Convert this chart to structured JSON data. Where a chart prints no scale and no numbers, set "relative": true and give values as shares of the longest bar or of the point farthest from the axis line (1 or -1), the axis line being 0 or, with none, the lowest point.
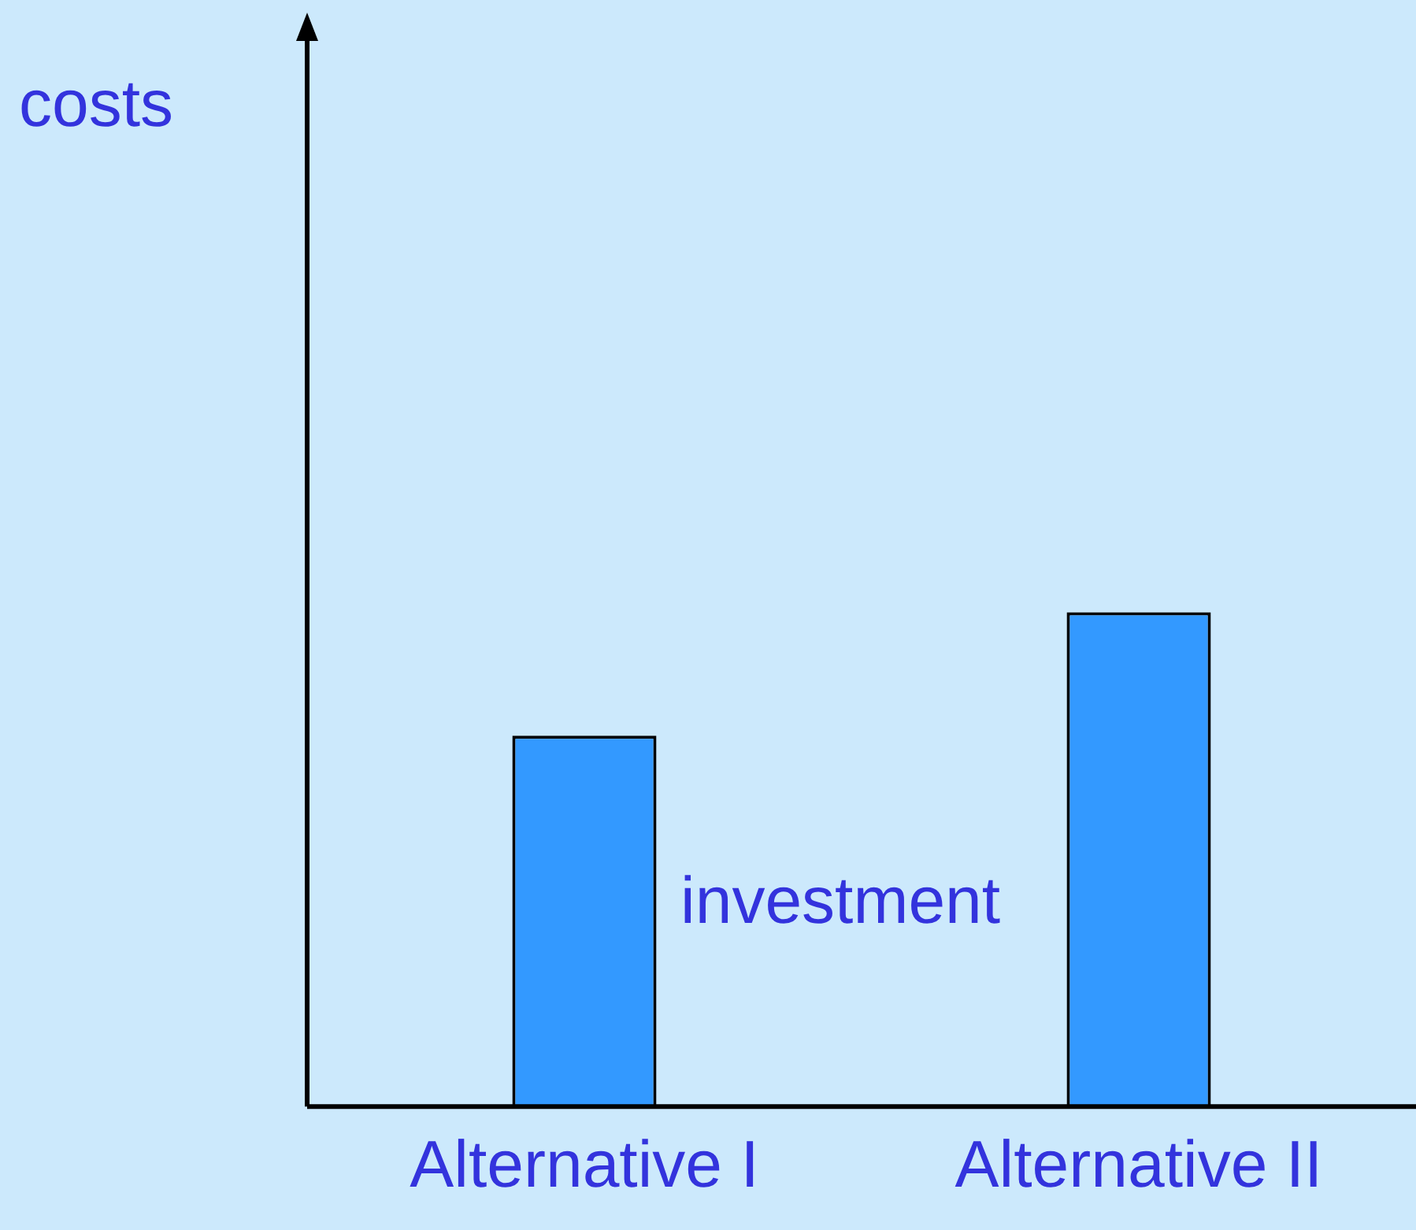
{
  "chart_data": {
    "type": "bar",
    "relative": true,
    "categories": [
      "Alternative I",
      "Alternative II"
    ],
    "values": [
      0.75,
      1
    ],
    "color": "#3399ff",
    "annotations": [
      "costs",
      "investment"
    ],
    "grid": false,
    "legend": false
  }
}
